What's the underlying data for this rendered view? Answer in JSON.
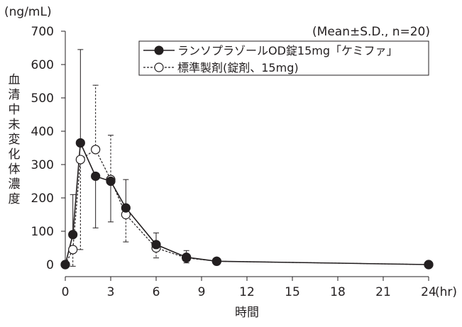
{
  "chart_data": {
    "type": "line",
    "title": "",
    "unit_label": "(ng/mL)",
    "annotation": "(Mean±S.D., n=20)",
    "xlabel": "時間",
    "ylabel": "血清中未変化体濃度",
    "x_unit": "(hr)",
    "xlim": [
      0,
      24
    ],
    "ylim": [
      0,
      700
    ],
    "xticks": [
      0,
      3,
      6,
      9,
      12,
      15,
      18,
      21,
      24
    ],
    "xtick_labels": [
      "0",
      "3",
      "6",
      "9",
      "12",
      "15",
      "18",
      "21",
      "24"
    ],
    "yticks": [
      0,
      100,
      200,
      300,
      400,
      500,
      600,
      700
    ],
    "ytick_labels": [
      "0",
      "100",
      "200",
      "300",
      "400",
      "500",
      "600",
      "700"
    ],
    "grid": false,
    "legend": "top-right",
    "series": [
      {
        "name": "ランソプラゾールOD錠15mg「ケミファ」",
        "marker": "filled-circle",
        "line": "solid",
        "color": "#231f20",
        "x": [
          0,
          0.5,
          1,
          2,
          3,
          4,
          6,
          8,
          10,
          24
        ],
        "y": [
          0,
          90,
          365,
          265,
          250,
          170,
          60,
          22,
          10,
          0
        ],
        "sd_upper": [
          0,
          210,
          645,
          null,
          null,
          255,
          95,
          42,
          20,
          null
        ],
        "sd_lower": [
          null,
          null,
          null,
          110,
          128,
          null,
          null,
          null,
          null,
          null
        ]
      },
      {
        "name": "標準製剤(錠剤、15mg)",
        "marker": "open-circle",
        "line": "dashed",
        "color": "#231f20",
        "x": [
          0,
          0.5,
          1,
          2,
          3,
          4,
          6,
          8,
          10,
          24
        ],
        "y": [
          0,
          45,
          315,
          345,
          255,
          150,
          50,
          20,
          10,
          0
        ],
        "sd_upper": [
          null,
          null,
          null,
          538,
          388,
          null,
          null,
          null,
          null,
          null
        ],
        "sd_lower": [
          null,
          -5,
          45,
          null,
          null,
          68,
          20,
          5,
          null,
          null
        ]
      }
    ]
  }
}
